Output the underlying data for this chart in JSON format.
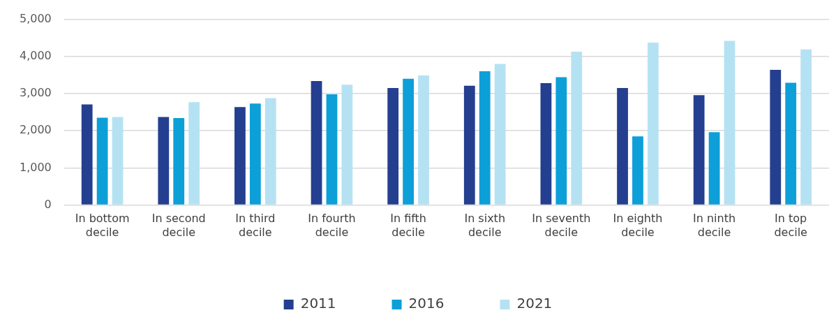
{
  "chart_data": {
    "type": "bar",
    "categories": [
      "In bottom decile",
      "In second decile",
      "In third decile",
      "In fourth decile",
      "In fifth decile",
      "In sixth decile",
      "In seventh decile",
      "In eighth decile",
      "In ninth decile",
      "In top decile"
    ],
    "series": [
      {
        "name": "2011",
        "color": "#243f8f",
        "values": [
          2710,
          2370,
          2640,
          3340,
          3150,
          3210,
          3280,
          3150,
          2960,
          3640
        ]
      },
      {
        "name": "2016",
        "color": "#0d9fd8",
        "values": [
          2350,
          2340,
          2730,
          2980,
          3400,
          3600,
          3440,
          1850,
          1960,
          3290
        ]
      },
      {
        "name": "2021",
        "color": "#b5e2f3",
        "values": [
          2370,
          2770,
          2880,
          3240,
          3490,
          3800,
          4130,
          4370,
          4420,
          4190
        ]
      }
    ],
    "ylim": [
      0,
      5000
    ],
    "yticks": [
      0,
      {
        "value": 1000,
        "label": "1,000"
      },
      {
        "value": 2000,
        "label": "2,000"
      },
      {
        "value": 3000,
        "label": "3,000"
      },
      {
        "value": 4000,
        "label": "4,000"
      },
      {
        "value": 5000,
        "label": "5,000"
      }
    ],
    "grid": "y",
    "legend": "bottom"
  }
}
